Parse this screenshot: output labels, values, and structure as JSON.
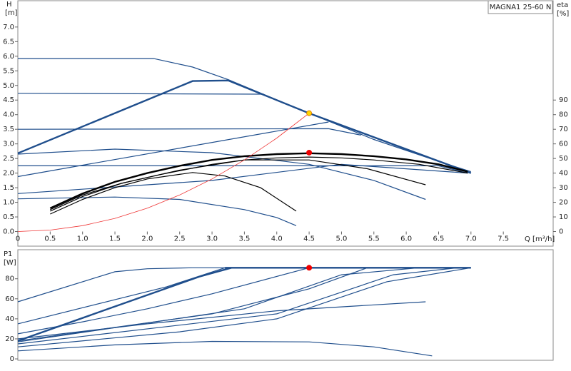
{
  "chart_data": [
    {
      "type": "line",
      "annotation": "MAGNA1 25-60 N",
      "ylabel": [
        "H",
        "[m]"
      ],
      "y2label": [
        "eta",
        "[%]"
      ],
      "xlabel": "Q [m³/h]",
      "xlim": [
        0,
        8.27
      ],
      "ylim": [
        -0.5,
        7.9
      ],
      "y2lim": [
        -10,
        158
      ],
      "xticks": [
        0,
        0.5,
        {
          "value": 1,
          "label": "1.0"
        },
        1.5,
        {
          "value": 2,
          "label": "2.0"
        },
        2.5,
        {
          "value": 3,
          "label": "3.0"
        },
        3.5,
        {
          "value": 4,
          "label": "4.0"
        },
        4.5,
        {
          "value": 5,
          "label": "5.0"
        },
        5.5,
        {
          "value": 6,
          "label": "6.0"
        },
        6.5,
        {
          "value": 7,
          "label": "7.0"
        },
        7.5
      ],
      "yticks": [
        {
          "value": 0,
          "label": "0.0"
        },
        0.5,
        {
          "value": 1,
          "label": "1.0"
        },
        1.5,
        {
          "value": 2,
          "label": "2.0"
        },
        2.5,
        {
          "value": 3,
          "label": "3.0"
        },
        3.5,
        {
          "value": 4,
          "label": "4.0"
        },
        4.5,
        {
          "value": 5,
          "label": "5.0"
        },
        5.5,
        {
          "value": 6,
          "label": "6.0"
        },
        6.5,
        {
          "value": 7,
          "label": "7.0"
        }
      ],
      "y2ticks": [
        0,
        10,
        20,
        30,
        40,
        50,
        60,
        70,
        80,
        90
      ],
      "series": [
        {
          "color": "#1f4e8c",
          "x": [
            0,
            2.1,
            2.7,
            3.25,
            4.5,
            5.5,
            6.5,
            7.0
          ],
          "values": [
            5.92,
            5.92,
            5.63,
            5.2,
            4.05,
            3.15,
            2.4,
            2.05
          ]
        },
        {
          "color": "#1f4e8c",
          "style": "bold",
          "x": [
            0,
            2.7,
            3.25,
            4.5,
            7.0
          ],
          "values": [
            2.68,
            5.15,
            5.17,
            4.05,
            2.0
          ]
        },
        {
          "color": "#1f4e8c",
          "x": [
            0,
            3.8
          ],
          "values": [
            4.73,
            4.7
          ]
        },
        {
          "color": "#1f4e8c",
          "x": [
            0,
            4.8,
            5.3
          ],
          "values": [
            3.5,
            3.52,
            3.3
          ]
        },
        {
          "color": "#1f4e8c",
          "x": [
            0,
            4.8
          ],
          "values": [
            1.88,
            3.75
          ]
        },
        {
          "color": "#1f4e8c",
          "x": [
            0,
            6.5,
            6.95
          ],
          "values": [
            2.25,
            2.25,
            2.0
          ]
        },
        {
          "color": "#1f4e8c",
          "x": [
            0,
            3,
            5,
            6.95
          ],
          "values": [
            1.3,
            1.75,
            2.3,
            2.0
          ]
        },
        {
          "color": "#1f4e8c",
          "x": [
            0,
            1.5,
            3,
            4.5,
            5.5,
            6.3
          ],
          "values": [
            2.65,
            2.82,
            2.7,
            2.3,
            1.75,
            1.1
          ]
        },
        {
          "color": "#1f4e8c",
          "x": [
            0,
            1.5,
            2.5,
            3.5,
            4,
            4.3
          ],
          "values": [
            1.12,
            1.18,
            1.1,
            0.75,
            0.48,
            0.2
          ]
        },
        {
          "color": "#000000",
          "axis": "y2",
          "style": "bold",
          "x": [
            0.5,
            1,
            1.5,
            2,
            2.5,
            3,
            3.5,
            4,
            4.5,
            5,
            5.5,
            6,
            6.5,
            6.95
          ],
          "values": [
            16,
            26,
            34,
            40,
            45,
            49,
            51.6,
            53,
            53.6,
            53,
            51.6,
            49.4,
            46,
            41
          ]
        },
        {
          "color": "#000000",
          "axis": "y2",
          "x": [
            0.5,
            1,
            1.6,
            2.2,
            3,
            3.5,
            4,
            4.5,
            5,
            5.5,
            6.2,
            6.95
          ],
          "values": [
            15,
            25,
            33,
            39,
            46,
            49,
            50.4,
            51,
            50.4,
            49,
            46,
            40
          ]
        },
        {
          "color": "#000000",
          "axis": "y2",
          "x": [
            0.5,
            1,
            1.5,
            2,
            2.7,
            3.2,
            3.75,
            4.3
          ],
          "values": [
            12,
            22,
            30,
            36,
            40.4,
            38,
            30,
            14
          ]
        },
        {
          "color": "#000000",
          "axis": "y2",
          "x": [
            0.5,
            1,
            1.6,
            2.5,
            3.5,
            4.5,
            5.4,
            6.3
          ],
          "values": [
            14,
            24,
            33,
            42,
            49,
            49,
            43,
            32
          ]
        },
        {
          "color": "#ee3333",
          "style": "thin",
          "x": [
            0,
            0.5,
            1,
            1.5,
            2,
            2.5,
            3,
            3.5,
            4,
            4.5
          ],
          "values": [
            0,
            0.05,
            0.2,
            0.45,
            0.8,
            1.25,
            1.8,
            2.45,
            3.2,
            4.05
          ]
        },
        {
          "color": "#ffd700",
          "marker": "circle",
          "x": [
            4.5
          ],
          "values": [
            4.05
          ]
        },
        {
          "color": "#ee0000",
          "marker": "circle",
          "x": [
            4.5
          ],
          "values": [
            2.7
          ]
        }
      ]
    },
    {
      "type": "line",
      "ylabel": [
        "P1",
        "[W]"
      ],
      "xlim": [
        0,
        8.27
      ],
      "ylim": [
        -1.4,
        109
      ],
      "yticks": [
        0,
        20,
        40,
        60,
        80
      ],
      "series": [
        {
          "color": "#1f4e8c",
          "x": [
            0,
            1.5,
            2,
            2.7,
            3.3
          ],
          "values": [
            57,
            87,
            90,
            91,
            91
          ]
        },
        {
          "color": "#1f4e8c",
          "x": [
            0,
            2.3,
            3.2
          ],
          "values": [
            35,
            72,
            91
          ]
        },
        {
          "color": "#1f4e8c",
          "style": "bold",
          "x": [
            0,
            1.4,
            2.8,
            3.3
          ],
          "values": [
            18,
            50,
            82,
            91
          ]
        },
        {
          "color": "#1f4e8c",
          "x": [
            0,
            1,
            2,
            3,
            4.5
          ],
          "values": [
            25,
            37,
            50,
            65,
            91
          ]
        },
        {
          "color": "#1f4e8c",
          "x": [
            0,
            3,
            4.5,
            5.4
          ],
          "values": [
            18,
            45,
            70,
            91
          ]
        },
        {
          "color": "#1f4e8c",
          "x": [
            0,
            3.5,
            5,
            6.2
          ],
          "values": [
            17,
            50,
            84,
            91
          ]
        },
        {
          "color": "#1f4e8c",
          "x": [
            0,
            4,
            5.8,
            6.8
          ],
          "values": [
            15,
            45,
            84,
            91
          ]
        },
        {
          "color": "#1f4e8c",
          "x": [
            0,
            2,
            4,
            6.3
          ],
          "values": [
            20,
            35,
            48,
            57
          ]
        },
        {
          "color": "#1f4e8c",
          "x": [
            0,
            1.5,
            3,
            4.5,
            5.5,
            6.4
          ],
          "values": [
            8,
            14,
            17.5,
            17,
            12,
            3
          ]
        },
        {
          "color": "#1f4e8c",
          "x": [
            0,
            2.5,
            4,
            5.7,
            7
          ],
          "values": [
            12,
            27,
            40,
            77,
            91
          ]
        },
        {
          "color": "#1f4e8c",
          "style": "bold",
          "x": [
            3.2,
            7
          ],
          "values": [
            91,
            91
          ]
        },
        {
          "color": "#ee0000",
          "marker": "circle",
          "x": [
            4.5
          ],
          "values": [
            91
          ]
        }
      ]
    }
  ]
}
